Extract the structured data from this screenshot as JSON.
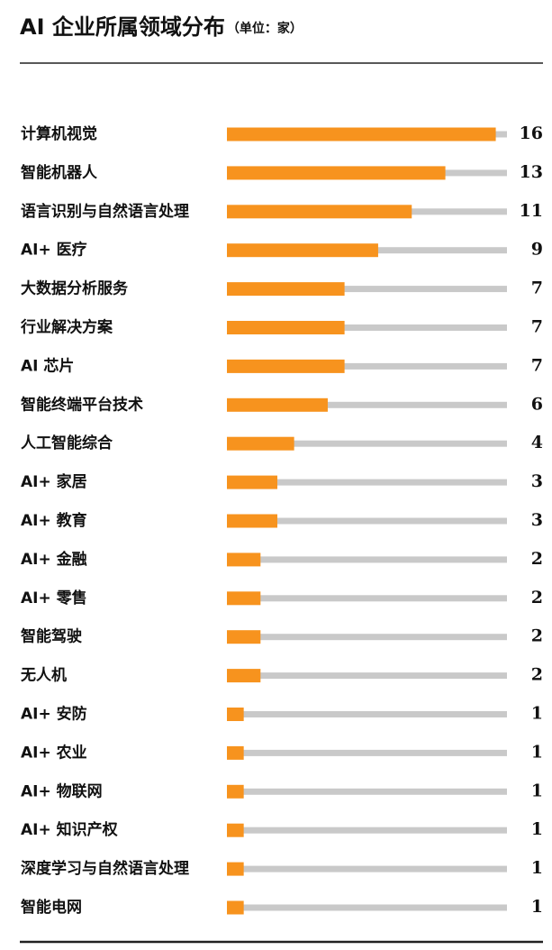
{
  "chart_data": {
    "type": "bar",
    "orientation": "horizontal",
    "title": "AI 企业所属领域分布",
    "subtitle": "（单位：家）",
    "categories": [
      "计算机视觉",
      "智能机器人",
      "语言识别与自然语言处理",
      "AI+ 医疗",
      "大数据分析服务",
      "行业解决方案",
      "AI 芯片",
      "智能终端平台技术",
      "人工智能综合",
      "AI+ 家居",
      "AI+ 教育",
      "AI+ 金融",
      "AI+ 零售",
      "智能驾驶",
      "无人机",
      "AI+ 安防",
      "AI+ 农业",
      "AI+ 物联网",
      "AI+ 知识产权",
      "深度学习与自然语言处理",
      "智能电网"
    ],
    "values": [
      16,
      13,
      11,
      9,
      7,
      7,
      7,
      6,
      4,
      3,
      3,
      2,
      2,
      2,
      2,
      1,
      1,
      1,
      1,
      1,
      1
    ],
    "color": "#f7931e",
    "track_color": "#c9c9c9"
  }
}
